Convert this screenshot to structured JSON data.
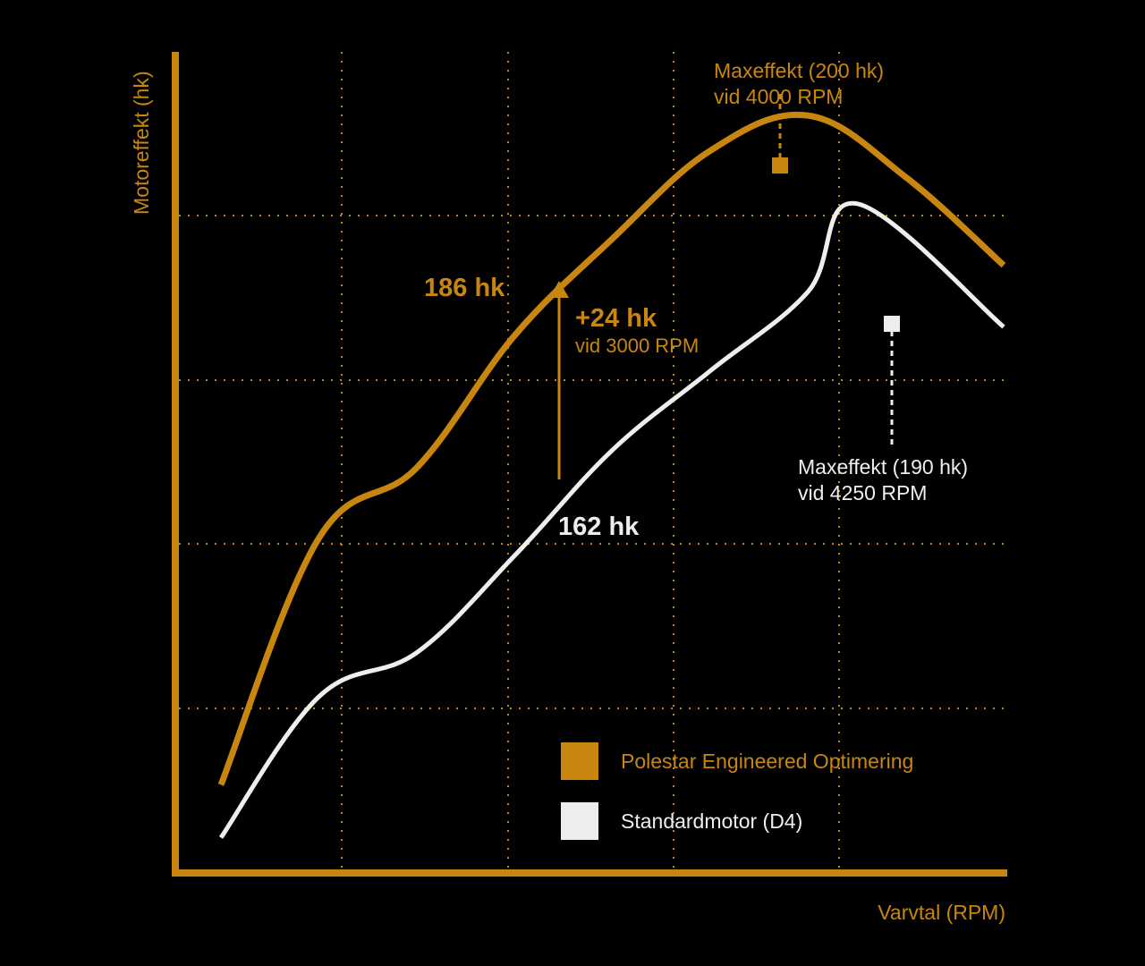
{
  "colors": {
    "background": "#000000",
    "primary": "#C8860F",
    "secondary": "#EEEEEE",
    "grid": "#C8860F"
  },
  "chart_data": {
    "type": "line",
    "title": "",
    "xlabel": "Varvtal (RPM)",
    "ylabel": "Motoreffekt (hk)",
    "grid": true,
    "legend_position": "bottom-right",
    "series": [
      {
        "name": "Polestar Engineered Optimering",
        "color": "#C8860F",
        "x": [
          1000,
          1500,
          2000,
          2500,
          3000,
          3500,
          4000,
          4500,
          5000
        ],
        "y": [
          124,
          152,
          160,
          175,
          186,
          196,
          200,
          193,
          183
        ]
      },
      {
        "name": "Standardmotor (D4)",
        "color": "#EEEEEE",
        "x": [
          1000,
          1500,
          2000,
          2500,
          3000,
          3500,
          4000,
          4250,
          5000
        ],
        "y": [
          118,
          134,
          139,
          150,
          162,
          171,
          180,
          190,
          176
        ]
      }
    ],
    "annotations": {
      "orange_point_label": "186 hk",
      "white_point_label": "162 hk",
      "delta_value": "+24 hk",
      "delta_rpm": "vid 3000 RPM",
      "max_orange_line1": "Maxeffekt (200 hk)",
      "max_orange_line2": "vid 4000 RPM",
      "max_white_line1": "Maxeffekt (190 hk)",
      "max_white_line2": "vid 4250 RPM"
    },
    "legend": [
      {
        "label": "Polestar Engineered Optimering",
        "color": "#C8860F"
      },
      {
        "label": "Standardmotor (D4)",
        "color": "#EEEEEE"
      }
    ]
  }
}
